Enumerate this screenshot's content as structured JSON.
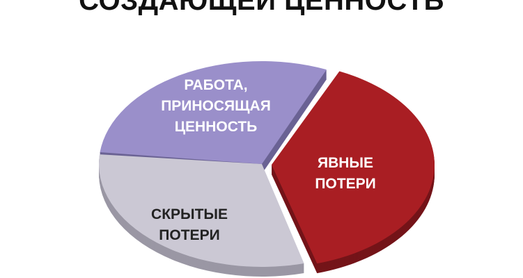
{
  "chart_data": {
    "type": "pie",
    "title": "СОЗДАЮЩЕЙ ЦЕННОСТЬ",
    "style": "3d-exploded",
    "slices": [
      {
        "label": [
          "РАБОТА,",
          "ПРИНОСЯЩАЯ",
          "ЦЕННОСТЬ"
        ],
        "value": 30,
        "color": "#9a8fca",
        "side_color": "#6b6394",
        "label_color": "#ffffff"
      },
      {
        "label": [
          "ЯВНЫЕ",
          "ПОТЕРИ"
        ],
        "value": 39,
        "color": "#a91e23",
        "side_color": "#741419",
        "label_color": "#ffffff",
        "exploded": true
      },
      {
        "label": [
          "СКРЫТЫЕ",
          "ПОТЕРИ"
        ],
        "value": 31,
        "color": "#cbc8d4",
        "side_color": "#9a97a4",
        "label_color": "#222222"
      }
    ]
  }
}
